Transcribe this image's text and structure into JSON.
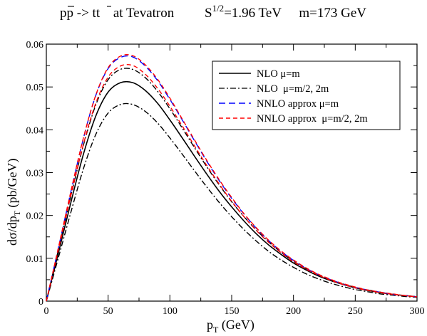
{
  "chart_data": {
    "type": "line",
    "title": {
      "process_pre": "p",
      "process_pbar": "p",
      "process_arrow": " -> ",
      "process_t": "t",
      "process_tbar": "t",
      "collider": "at  Tevatron",
      "energy_pre": "S",
      "energy_exp": "1/2",
      "energy_post": "=1.96 TeV",
      "mass": "m=173 GeV"
    },
    "xlabel": {
      "base": "p",
      "sub": "T",
      "rest": " (GeV)"
    },
    "ylabel": {
      "pre": "dσ/dp",
      "sub": "T",
      "post": " (pb/GeV)"
    },
    "xlim": [
      0,
      300
    ],
    "ylim": [
      0,
      0.06
    ],
    "xticks": [
      0,
      50,
      100,
      150,
      200,
      250,
      300
    ],
    "xtick_labels": [
      "0",
      "50",
      "100",
      "150",
      "200",
      "250",
      "300"
    ],
    "yticks": [
      0,
      0.01,
      0.02,
      0.03,
      0.04,
      0.05,
      0.06
    ],
    "ytick_labels": [
      "0",
      "0.01",
      "0.02",
      "0.03",
      "0.04",
      "0.05",
      "0.06"
    ],
    "grid": false,
    "legend_position": "top-right",
    "x": [
      0,
      10,
      20,
      30,
      40,
      50,
      60,
      70,
      80,
      90,
      100,
      110,
      120,
      130,
      140,
      150,
      160,
      170,
      180,
      190,
      200,
      210,
      220,
      230,
      240,
      250,
      260,
      270,
      280,
      290,
      300
    ],
    "series": [
      {
        "name": "NLO μ=m",
        "color": "#000000",
        "dash": "solid",
        "values": [
          0,
          0.0115,
          0.0232,
          0.0343,
          0.0432,
          0.0488,
          0.051,
          0.051,
          0.0492,
          0.0462,
          0.0423,
          0.0381,
          0.0338,
          0.0296,
          0.0256,
          0.022,
          0.0187,
          0.0157,
          0.0131,
          0.0109,
          0.0089,
          0.0073,
          0.0059,
          0.0048,
          0.0039,
          0.0031,
          0.0025,
          0.002,
          0.0016,
          0.0013,
          0.001
        ]
      },
      {
        "name": "NLO  μ=m/2, 2m",
        "color": "#000000",
        "dash": "dashdot",
        "band": true,
        "values_upper": [
          0,
          0.0123,
          0.0247,
          0.0364,
          0.0458,
          0.0517,
          0.0541,
          0.0541,
          0.0522,
          0.049,
          0.0449,
          0.0404,
          0.0358,
          0.0313,
          0.0271,
          0.0232,
          0.0197,
          0.0166,
          0.0138,
          0.0114,
          0.0093,
          0.0076,
          0.0062,
          0.005,
          0.004,
          0.0032,
          0.0026,
          0.0021,
          0.0016,
          0.0013,
          0.001
        ],
        "values_lower": [
          0,
          0.0104,
          0.0209,
          0.0309,
          0.0389,
          0.0439,
          0.0459,
          0.0459,
          0.0443,
          0.0416,
          0.0381,
          0.0343,
          0.0304,
          0.0266,
          0.023,
          0.0197,
          0.0167,
          0.014,
          0.0116,
          0.0096,
          0.0079,
          0.0064,
          0.0052,
          0.0042,
          0.0034,
          0.0027,
          0.0022,
          0.0017,
          0.0014,
          0.0011,
          0.0009
        ]
      },
      {
        "name": "NNLO approx μ=m",
        "color": "#0000ff",
        "dash": "dashed",
        "values": [
          0,
          0.0127,
          0.0257,
          0.038,
          0.048,
          0.0543,
          0.0569,
          0.057,
          0.0549,
          0.0515,
          0.0471,
          0.0423,
          0.0374,
          0.0326,
          0.0281,
          0.024,
          0.0203,
          0.017,
          0.0141,
          0.0116,
          0.0095,
          0.0077,
          0.0062,
          0.005,
          0.004,
          0.0032,
          0.0026,
          0.0021,
          0.0016,
          0.0013,
          0.001
        ]
      },
      {
        "name": "NNLO approx  μ=m/2, 2m",
        "color": "#ff0000",
        "dash": "dashed",
        "band": true,
        "values_upper": [
          0,
          0.0128,
          0.0258,
          0.0381,
          0.0481,
          0.0545,
          0.0572,
          0.0573,
          0.0552,
          0.0518,
          0.0474,
          0.0425,
          0.0376,
          0.0328,
          0.0283,
          0.0242,
          0.0204,
          0.0171,
          0.0142,
          0.0117,
          0.0096,
          0.0078,
          0.0063,
          0.0051,
          0.0041,
          0.0033,
          0.0026,
          0.0021,
          0.0017,
          0.0013,
          0.001
        ],
        "values_lower": [
          0,
          0.0123,
          0.0248,
          0.0366,
          0.0462,
          0.0523,
          0.0549,
          0.055,
          0.053,
          0.0497,
          0.0455,
          0.0409,
          0.0362,
          0.0316,
          0.0273,
          0.0233,
          0.0197,
          0.0165,
          0.0137,
          0.0113,
          0.0092,
          0.0075,
          0.0061,
          0.0049,
          0.0039,
          0.0031,
          0.0025,
          0.002,
          0.0016,
          0.0013,
          0.001
        ]
      }
    ]
  }
}
